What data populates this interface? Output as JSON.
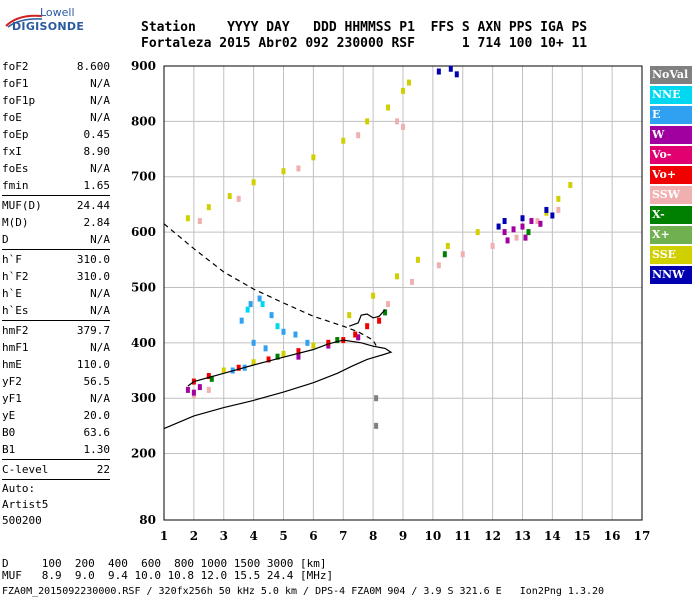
{
  "logo": {
    "line1": "Lowell",
    "line2": "DIGISONDE"
  },
  "header": {
    "labels": "Station    YYYY DAY   DDD HHMMSS P1  FFS S AXN PPS IGA PS",
    "values": "Fortaleza 2015 Abr02 092 230000 RSF      1 714 100 10+ 11"
  },
  "params": {
    "group1": [
      {
        "name": "foF2",
        "value": "8.600"
      },
      {
        "name": "foF1",
        "value": "N/A"
      },
      {
        "name": "foF1p",
        "value": "N/A"
      },
      {
        "name": "foE",
        "value": "N/A"
      },
      {
        "name": "foEp",
        "value": "0.45"
      },
      {
        "name": "fxI",
        "value": "8.90"
      },
      {
        "name": "foEs",
        "value": "N/A"
      },
      {
        "name": "fmin",
        "value": "1.65"
      }
    ],
    "group2": [
      {
        "name": "MUF(D)",
        "value": "24.44"
      },
      {
        "name": "M(D)",
        "value": "2.84"
      },
      {
        "name": "D",
        "value": "N/A"
      }
    ],
    "group3": [
      {
        "name": "h`F",
        "value": "310.0"
      },
      {
        "name": "h`F2",
        "value": "310.0"
      },
      {
        "name": "h`E",
        "value": "N/A"
      },
      {
        "name": "h`Es",
        "value": "N/A"
      }
    ],
    "group4": [
      {
        "name": "hmF2",
        "value": "379.7"
      },
      {
        "name": "hmF1",
        "value": "N/A"
      },
      {
        "name": "hmE",
        "value": "110.0"
      },
      {
        "name": "yF2",
        "value": "56.5"
      },
      {
        "name": "yF1",
        "value": "N/A"
      },
      {
        "name": "yE",
        "value": "20.0"
      },
      {
        "name": "B0",
        "value": "63.6"
      },
      {
        "name": "B1",
        "value": "1.30"
      }
    ],
    "group5": [
      {
        "name": "C-level",
        "value": "22"
      }
    ],
    "auto": [
      "Auto:",
      "Artist5",
      "500200"
    ]
  },
  "legend": [
    {
      "label": "NoVal",
      "color": "#808080"
    },
    {
      "label": "NNE",
      "color": "#00d8f0"
    },
    {
      "label": "E",
      "color": "#30a0f0"
    },
    {
      "label": "W",
      "color": "#a000a0"
    },
    {
      "label": "Vo-",
      "color": "#e00070"
    },
    {
      "label": "Vo+",
      "color": "#f00000"
    },
    {
      "label": "SSW",
      "color": "#f0b0b0"
    },
    {
      "label": "X-",
      "color": "#008000"
    },
    {
      "label": "X+",
      "color": "#70b050"
    },
    {
      "label": "SSE",
      "color": "#d0d000"
    },
    {
      "label": "NNW",
      "color": "#0000b0"
    }
  ],
  "footer": {
    "line1": "D     100  200  400  600  800 1000 1500 3000 [km]",
    "line2": "MUF   8.9  9.0  9.4 10.0 10.8 12.0 15.5 24.4 [MHz]",
    "line3": "FZA0M_2015092230000.RSF / 320fx256h 50 kHz 5.0 km / DPS-4 FZA0M 904 / 3.9 S 321.6 E   Ion2Png 1.3.20"
  },
  "chart_data": {
    "type": "scatter",
    "xlim": [
      1,
      17
    ],
    "ylim": [
      80,
      900
    ],
    "x_ticks": [
      1,
      2,
      3,
      4,
      5,
      6,
      7,
      8,
      9,
      10,
      11,
      12,
      13,
      14,
      15,
      16,
      17
    ],
    "y_ticks": [
      80,
      200,
      300,
      400,
      500,
      600,
      700,
      800,
      900
    ],
    "grid": true,
    "point_groups": [
      {
        "color": "#d0d000",
        "points": [
          [
            1.8,
            625
          ],
          [
            2.5,
            645
          ],
          [
            3.2,
            665
          ],
          [
            4.0,
            690
          ],
          [
            5.0,
            710
          ],
          [
            6.0,
            735
          ],
          [
            7.0,
            765
          ],
          [
            7.8,
            800
          ],
          [
            8.5,
            825
          ],
          [
            9.0,
            855
          ],
          [
            9.2,
            870
          ],
          [
            7.2,
            450
          ],
          [
            8.0,
            485
          ],
          [
            8.8,
            520
          ],
          [
            9.5,
            550
          ],
          [
            10.5,
            575
          ],
          [
            11.5,
            600
          ],
          [
            6.0,
            395
          ],
          [
            5.0,
            380
          ],
          [
            4.0,
            365
          ],
          [
            3.0,
            350
          ],
          [
            13.8,
            635
          ],
          [
            14.2,
            660
          ],
          [
            14.6,
            685
          ]
        ]
      },
      {
        "color": "#f0b0b0",
        "points": [
          [
            2.2,
            620
          ],
          [
            3.5,
            660
          ],
          [
            5.5,
            715
          ],
          [
            7.5,
            775
          ],
          [
            8.8,
            800
          ],
          [
            9.0,
            790
          ],
          [
            8.5,
            470
          ],
          [
            9.3,
            510
          ],
          [
            10.2,
            540
          ],
          [
            11.0,
            560
          ],
          [
            12.0,
            575
          ],
          [
            12.8,
            590
          ],
          [
            13.5,
            620
          ],
          [
            14.2,
            640
          ],
          [
            2.0,
            305
          ],
          [
            2.5,
            315
          ],
          [
            7.5,
            410
          ]
        ]
      },
      {
        "color": "#a000a0",
        "points": [
          [
            12.4,
            600
          ],
          [
            12.7,
            605
          ],
          [
            13.0,
            610
          ],
          [
            13.3,
            620
          ],
          [
            13.6,
            615
          ],
          [
            12.5,
            585
          ],
          [
            13.1,
            590
          ],
          [
            1.8,
            315
          ],
          [
            2.0,
            310
          ],
          [
            2.2,
            320
          ],
          [
            5.5,
            375
          ],
          [
            6.5,
            395
          ],
          [
            7.5,
            410
          ]
        ]
      },
      {
        "color": "#30a0f0",
        "points": [
          [
            3.6,
            440
          ],
          [
            3.9,
            470
          ],
          [
            4.2,
            480
          ],
          [
            4.6,
            450
          ],
          [
            5.0,
            420
          ],
          [
            5.4,
            415
          ],
          [
            5.8,
            400
          ],
          [
            4.0,
            400
          ],
          [
            4.4,
            390
          ],
          [
            3.3,
            350
          ],
          [
            3.7,
            355
          ]
        ]
      },
      {
        "color": "#f00000",
        "points": [
          [
            2.0,
            330
          ],
          [
            2.5,
            340
          ],
          [
            3.5,
            355
          ],
          [
            4.5,
            370
          ],
          [
            5.5,
            385
          ],
          [
            6.5,
            400
          ],
          [
            7.0,
            405
          ],
          [
            7.4,
            415
          ],
          [
            7.8,
            430
          ],
          [
            8.2,
            440
          ]
        ]
      },
      {
        "color": "#008000",
        "points": [
          [
            2.6,
            335
          ],
          [
            4.8,
            375
          ],
          [
            6.8,
            405
          ],
          [
            8.4,
            455
          ],
          [
            10.4,
            560
          ],
          [
            13.2,
            600
          ]
        ]
      },
      {
        "color": "#0000b0",
        "points": [
          [
            10.2,
            890
          ],
          [
            10.6,
            895
          ],
          [
            10.8,
            885
          ],
          [
            12.4,
            620
          ],
          [
            13.0,
            625
          ],
          [
            13.8,
            640
          ],
          [
            14.0,
            630
          ],
          [
            12.2,
            610
          ]
        ]
      },
      {
        "color": "#00d8f0",
        "points": [
          [
            4.3,
            470
          ],
          [
            3.8,
            460
          ],
          [
            4.8,
            430
          ]
        ]
      },
      {
        "color": "#808080",
        "points": [
          [
            8.1,
            300
          ],
          [
            8.1,
            250
          ]
        ]
      }
    ],
    "profile_solid": [
      [
        1,
        245
      ],
      [
        2,
        268
      ],
      [
        3,
        283
      ],
      [
        4,
        296
      ],
      [
        5,
        311
      ],
      [
        6,
        328
      ],
      [
        6.8,
        345
      ],
      [
        7.3,
        358
      ],
      [
        7.8,
        370
      ],
      [
        8.3,
        378
      ],
      [
        8.6,
        383
      ],
      [
        8.4,
        390
      ],
      [
        8.0,
        394
      ],
      [
        7.6,
        400
      ],
      [
        7.0,
        405
      ],
      [
        6.5,
        398
      ],
      [
        6.0,
        388
      ],
      [
        5.0,
        374
      ],
      [
        4.0,
        360
      ],
      [
        3.0,
        345
      ],
      [
        2.0,
        330
      ],
      [
        1.8,
        322
      ]
    ],
    "trace_solid": [
      [
        7.2,
        430
      ],
      [
        7.5,
        436
      ],
      [
        7.6,
        450
      ],
      [
        7.8,
        452
      ],
      [
        8.0,
        445
      ],
      [
        8.2,
        448
      ],
      [
        8.4,
        460
      ]
    ],
    "profile_dashed": [
      [
        1,
        615
      ],
      [
        2,
        570
      ],
      [
        3,
        528
      ],
      [
        4,
        497
      ],
      [
        5,
        472
      ],
      [
        6,
        448
      ],
      [
        7,
        430
      ],
      [
        7.5,
        420
      ],
      [
        8,
        405
      ],
      [
        8.1,
        395
      ]
    ]
  }
}
